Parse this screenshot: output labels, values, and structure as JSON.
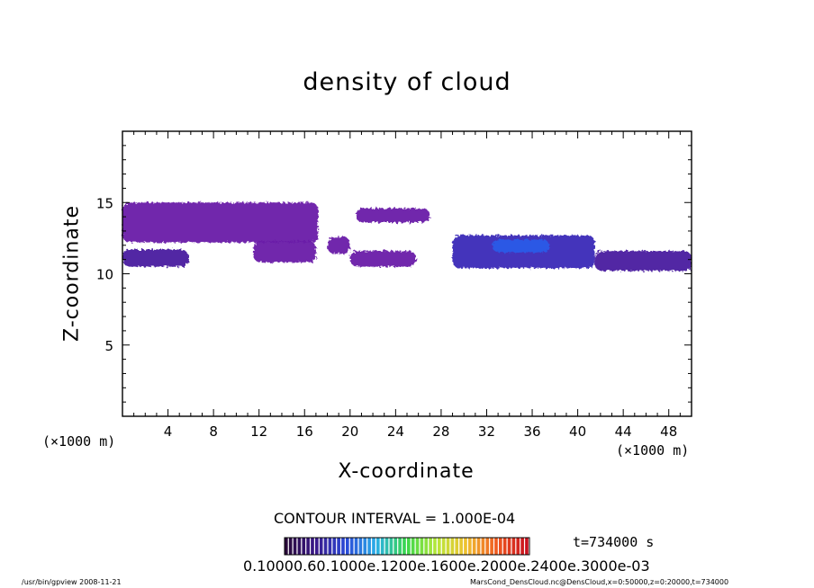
{
  "page": {
    "title": "density of cloud",
    "contour_interval": "CONTOUR INTERVAL = 1.000E-04",
    "time_label": "t=734000 s",
    "colorbar_labels": "0.10000.60.1000e.1200e.1600e.2000e.2400e.3000e-03",
    "footer_left": "/usr/bin/gpview   2008-11-21",
    "footer_right": "MarsCond_DensCloud.nc@DensCloud,x=0:50000,z=0:20000,t=734000"
  },
  "chart_data": {
    "type": "heatmap",
    "title": "density of cloud",
    "xlabel": "X-coordinate",
    "ylabel": "Z-coordinate",
    "x_unit_label": "(×1000 m)",
    "x_ticks": [
      4,
      8,
      12,
      16,
      20,
      24,
      28,
      32,
      36,
      40,
      44,
      48
    ],
    "y_ticks": [
      5,
      10,
      15
    ],
    "xlim": [
      0,
      50
    ],
    "ylim": [
      0,
      20
    ],
    "grid": false,
    "colormap": [
      "#2a0a3a",
      "#3a1a8c",
      "#2a4ad8",
      "#2ab0e8",
      "#3ad84a",
      "#b8e83a",
      "#f0c030",
      "#f05a20",
      "#c8101e"
    ],
    "cloud_regions": [
      {
        "x": [
          0,
          5.8
        ],
        "z": [
          10.5,
          11.7
        ],
        "level": 0.2
      },
      {
        "x": [
          0,
          17.2
        ],
        "z": [
          12.2,
          15.0
        ],
        "level": 0.1
      },
      {
        "x": [
          11.5,
          17.0
        ],
        "z": [
          10.8,
          12.3
        ],
        "level": 0.1
      },
      {
        "x": [
          18.0,
          20.0
        ],
        "z": [
          11.4,
          12.6
        ],
        "level": 0.1
      },
      {
        "x": [
          20.0,
          25.8
        ],
        "z": [
          10.5,
          11.6
        ],
        "level": 0.1
      },
      {
        "x": [
          20.5,
          27.0
        ],
        "z": [
          13.6,
          14.6
        ],
        "level": 0.1
      },
      {
        "x": [
          29.0,
          41.5
        ],
        "z": [
          10.4,
          12.7
        ],
        "level": 0.3
      },
      {
        "x": [
          32.5,
          37.5
        ],
        "z": [
          11.5,
          12.4
        ],
        "level": 0.5
      },
      {
        "x": [
          41.5,
          50.0
        ],
        "z": [
          10.2,
          11.6
        ],
        "level": 0.2
      }
    ],
    "colorbar_label_text": "0.10000.60.1000e.1200e.1600e.2000e.2400e.3000e-03"
  }
}
